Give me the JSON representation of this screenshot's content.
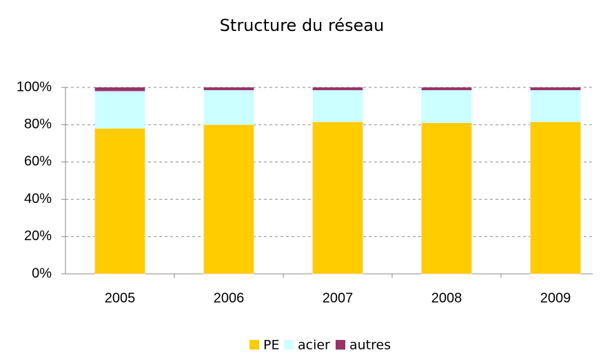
{
  "chart_data": {
    "type": "bar",
    "stacked": true,
    "title": "Structure du réseau",
    "categories": [
      "2005",
      "2006",
      "2007",
      "2008",
      "2009"
    ],
    "series": [
      {
        "name": "PE",
        "color": "#ffcc00",
        "values": [
          78,
          80,
          81.5,
          81,
          81.5
        ]
      },
      {
        "name": "acier",
        "color": "#ccffff",
        "values": [
          20,
          18.5,
          17,
          17.5,
          17
        ]
      },
      {
        "name": "autres",
        "color": "#993366",
        "values": [
          2,
          1.5,
          1.5,
          1.5,
          1.5
        ]
      }
    ],
    "ylim": [
      0,
      100
    ],
    "yticks": [
      {
        "value": 0,
        "label": "0%"
      },
      {
        "value": 20,
        "label": "20%"
      },
      {
        "value": 40,
        "label": "40%"
      },
      {
        "value": 60,
        "label": "60%"
      },
      {
        "value": 80,
        "label": "80%"
      },
      {
        "value": 100,
        "label": "100%"
      }
    ],
    "grid": true,
    "legend": "bottom"
  }
}
